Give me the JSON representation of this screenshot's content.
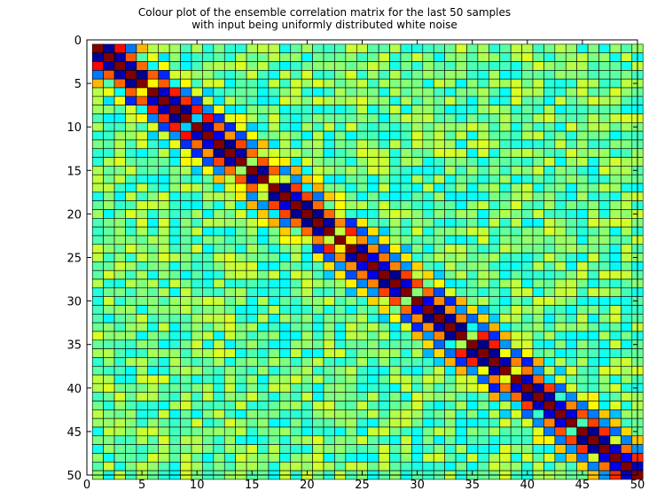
{
  "chart_data": {
    "type": "heatmap",
    "title_lines": [
      "Colour plot of the ensemble correlation matrix for the last 50 samples",
      "with input being uniformly distributed white noise"
    ],
    "xlabel": "",
    "ylabel": "",
    "rows": 50,
    "cols": 50,
    "xlim": [
      0,
      50
    ],
    "ylim": [
      0,
      50
    ],
    "y_axis_direction": "reversed",
    "xticks": [
      0,
      5,
      10,
      15,
      20,
      25,
      30,
      35,
      40,
      45,
      50
    ],
    "yticks": [
      0,
      5,
      10,
      15,
      20,
      25,
      30,
      35,
      40,
      45,
      50
    ],
    "colormap": "jet",
    "colormap_stops": [
      "#00008f",
      "#0000ff",
      "#00ffff",
      "#ffff00",
      "#ff0000",
      "#800000"
    ],
    "value_range": [
      -0.25,
      1.0
    ],
    "grid": true,
    "cell_edge_color": "#000000",
    "background_level": 0.35,
    "band_structure": "diagonal peak at 1.0 with alternating strong negative / positive values on off-diagonals 1–3 near the diagonal; remainder near the background level",
    "diagonal_profile": [
      {
        "offset": 0,
        "value": 1.0
      },
      {
        "offset": 1,
        "value": -0.2
      },
      {
        "offset": 2,
        "value": 0.75
      },
      {
        "offset": 3,
        "value": 0.02
      },
      {
        "offset": 4,
        "value": 0.55
      }
    ]
  }
}
